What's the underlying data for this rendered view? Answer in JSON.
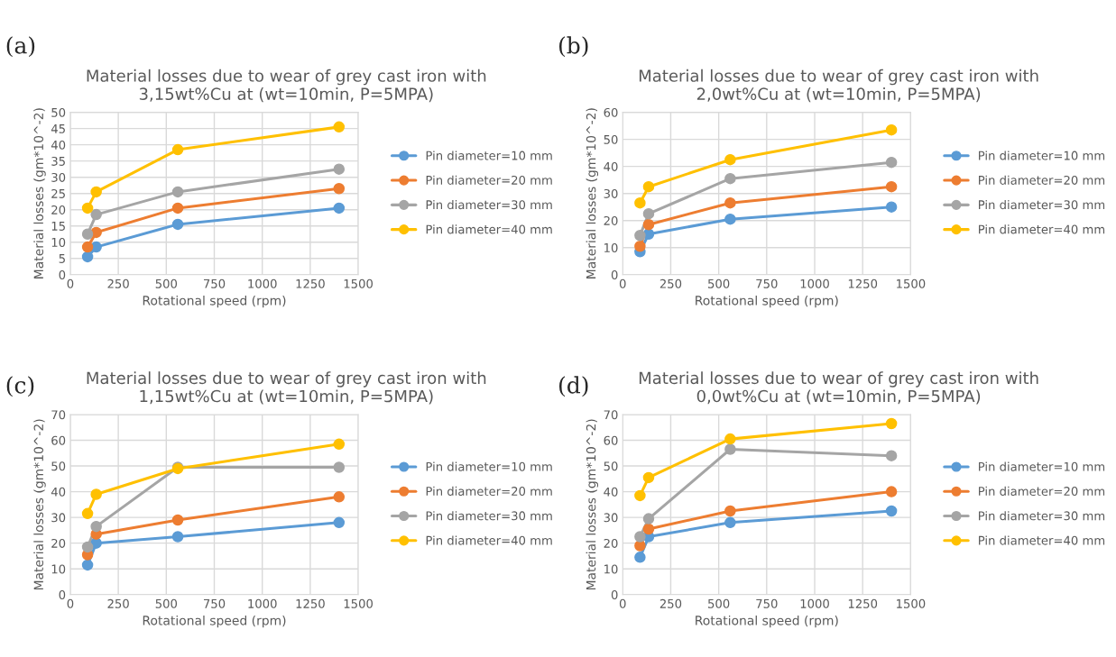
{
  "chart_data": [
    {
      "type": "line",
      "title": "Material losses due to wear of grey cast iron with\n3,15wt%Cu at (wt=10min, P=5MPA)",
      "xlabel": "Rotational speed (rpm)",
      "ylabel": "Material losses (gm*10^-2)",
      "annotations": [
        "(a)"
      ],
      "x": [
        90,
        135,
        560,
        1400
      ],
      "xlim": [
        0,
        1500
      ],
      "xticks": [
        0,
        250,
        500,
        750,
        1000,
        1250,
        1500
      ],
      "ylim": [
        0,
        50
      ],
      "yticks": [
        0,
        5,
        10,
        15,
        20,
        25,
        30,
        35,
        40,
        45,
        50
      ],
      "grid": true,
      "legend": "right",
      "marker": "circle",
      "series": [
        {
          "name": "Pin diameter=10 mm",
          "color": "#5b9bd5",
          "values": [
            5.5,
            8.5,
            15.5,
            20.5
          ]
        },
        {
          "name": "Pin diameter=20 mm",
          "color": "#ed7d31",
          "values": [
            8.5,
            13,
            20.5,
            26.5
          ]
        },
        {
          "name": "Pin diameter=30 mm",
          "color": "#a5a5a5",
          "values": [
            12.5,
            18.5,
            25.5,
            32.5
          ]
        },
        {
          "name": "Pin diameter=40 mm",
          "color": "#ffc000",
          "values": [
            20.5,
            25.5,
            38.5,
            45.5
          ]
        }
      ]
    },
    {
      "type": "line",
      "title": "Material losses due to wear of grey cast iron with\n2,0wt%Cu at (wt=10min, P=5MPA)",
      "xlabel": "Rotational speed (rpm)",
      "ylabel": "Material losses (gm*10^-2)",
      "annotations": [
        "(b)"
      ],
      "x": [
        90,
        135,
        560,
        1400
      ],
      "xlim": [
        0,
        1500
      ],
      "xticks": [
        0,
        250,
        500,
        750,
        1000,
        1250,
        1500
      ],
      "ylim": [
        0,
        60
      ],
      "yticks": [
        0,
        10,
        20,
        30,
        40,
        50,
        60
      ],
      "grid": true,
      "legend": "right",
      "marker": "circle",
      "series": [
        {
          "name": "Pin diameter=10 mm",
          "color": "#5b9bd5",
          "values": [
            8.5,
            15,
            20.5,
            25
          ]
        },
        {
          "name": "Pin diameter=20 mm",
          "color": "#ed7d31",
          "values": [
            10.5,
            18.5,
            26.5,
            32.5
          ]
        },
        {
          "name": "Pin diameter=30 mm",
          "color": "#a5a5a5",
          "values": [
            14.5,
            22.5,
            35.5,
            41.5
          ]
        },
        {
          "name": "Pin diameter=40 mm",
          "color": "#ffc000",
          "values": [
            26.5,
            32.5,
            42.5,
            53.5
          ]
        }
      ]
    },
    {
      "type": "line",
      "title": "Material losses due to wear of grey cast iron with\n1,15wt%Cu at (wt=10min, P=5MPA)",
      "xlabel": "Rotational speed (rpm)",
      "ylabel": "Material losses (gm*10^-2)",
      "annotations": [
        "(c)"
      ],
      "x": [
        90,
        135,
        560,
        1400
      ],
      "xlim": [
        0,
        1500
      ],
      "xticks": [
        0,
        250,
        500,
        750,
        1000,
        1250,
        1500
      ],
      "ylim": [
        0,
        70
      ],
      "yticks": [
        0,
        10,
        20,
        30,
        40,
        50,
        60,
        70
      ],
      "grid": true,
      "legend": "right",
      "marker": "circle",
      "series": [
        {
          "name": "Pin diameter=10 mm",
          "color": "#5b9bd5",
          "values": [
            11.5,
            20,
            22.5,
            28
          ]
        },
        {
          "name": "Pin diameter=20 mm",
          "color": "#ed7d31",
          "values": [
            15.5,
            23.5,
            29,
            38
          ]
        },
        {
          "name": "Pin diameter=30 mm",
          "color": "#a5a5a5",
          "values": [
            18.5,
            26.5,
            49.5,
            49.5
          ]
        },
        {
          "name": "Pin diameter=40 mm",
          "color": "#ffc000",
          "values": [
            31.5,
            39,
            49,
            58.5
          ]
        }
      ]
    },
    {
      "type": "line",
      "title": "Material losses due to wear of grey cast iron with\n0,0wt%Cu at (wt=10min, P=5MPA)",
      "xlabel": "Rotational speed (rpm)",
      "ylabel": "Material losses (gm*10^-2)",
      "annotations": [
        "(d)"
      ],
      "x": [
        90,
        135,
        560,
        1400
      ],
      "xlim": [
        0,
        1500
      ],
      "xticks": [
        0,
        250,
        500,
        750,
        1000,
        1250,
        1500
      ],
      "ylim": [
        0,
        70
      ],
      "yticks": [
        0,
        10,
        20,
        30,
        40,
        50,
        60,
        70
      ],
      "grid": true,
      "legend": "right",
      "marker": "circle",
      "series": [
        {
          "name": "Pin diameter=10 mm",
          "color": "#5b9bd5",
          "values": [
            14.5,
            22.5,
            28,
            32.5
          ]
        },
        {
          "name": "Pin diameter=20 mm",
          "color": "#ed7d31",
          "values": [
            19,
            25.5,
            32.5,
            40
          ]
        },
        {
          "name": "Pin diameter=30 mm",
          "color": "#a5a5a5",
          "values": [
            22.5,
            29.5,
            56.5,
            54
          ]
        },
        {
          "name": "Pin diameter=40 mm",
          "color": "#ffc000",
          "values": [
            38.5,
            45.5,
            60.5,
            66.5
          ]
        }
      ]
    }
  ]
}
